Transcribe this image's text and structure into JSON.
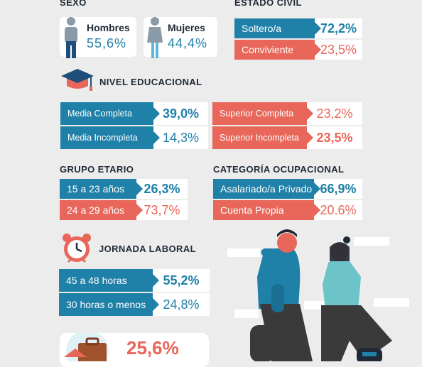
{
  "sexo": {
    "title": "SEXO",
    "hombres": {
      "label": "Hombres",
      "value": "55,6%"
    },
    "mujeres": {
      "label": "Mujeres",
      "value": "44,4%"
    }
  },
  "estado_civil": {
    "title": "ESTADO CIVIL",
    "rows": [
      {
        "label": "Soltero/a",
        "value": "72,2%"
      },
      {
        "label": "Conviviente",
        "value": "23,5%"
      }
    ]
  },
  "nivel_educacional": {
    "title": "NIVEL EDUCACIONAL",
    "left": [
      {
        "label": "Media Completa",
        "value": "39,0%"
      },
      {
        "label": "Media Incompleta",
        "value": "14,3%"
      }
    ],
    "right": [
      {
        "label": "Superior Completa",
        "value": "23,2%"
      },
      {
        "label": "Superior Incompleta",
        "value": "23,5%"
      }
    ]
  },
  "grupo_etario": {
    "title": "GRUPO ETARIO",
    "rows": [
      {
        "label": "15 a 23 años",
        "value": "26,3%"
      },
      {
        "label": "24 a 29 años",
        "value": "73,7%"
      }
    ]
  },
  "categoria_ocupacional": {
    "title": "CATEGORÍA OCUPACIONAL",
    "rows": [
      {
        "label": "Asalariado/a Privado",
        "value": "66,9%"
      },
      {
        "label": "Cuenta Propia",
        "value": "20.6%"
      }
    ]
  },
  "jornada_laboral": {
    "title": "JORNADA LABORAL",
    "rows": [
      {
        "label": "45 a 48 horas",
        "value": "55,2%"
      },
      {
        "label": "30 horas o menos",
        "value": "24,8%"
      }
    ]
  },
  "bottom": {
    "value": "25,6%"
  },
  "colors": {
    "blue": "#1f80a8",
    "red": "#e8665a",
    "background": "#ececec"
  },
  "icons": [
    "male-person-icon",
    "female-person-icon",
    "graduation-cap-icon",
    "alarm-clock-icon",
    "house-briefcase-icon",
    "young-couple-illustration"
  ]
}
